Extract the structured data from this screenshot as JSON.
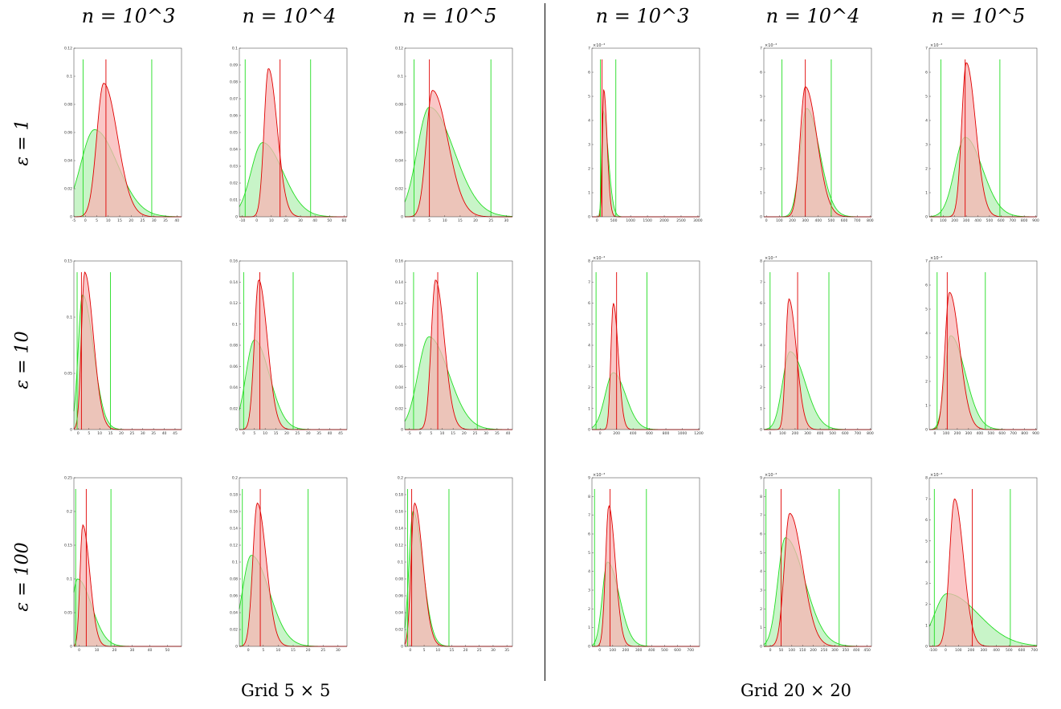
{
  "headers": {
    "columns": [
      "n = 10^3",
      "n = 10^4",
      "n = 10^5",
      "n = 10^3",
      "n = 10^4",
      "n = 10^5"
    ],
    "rows": [
      "ε = 1",
      "ε = 10",
      "ε = 100"
    ],
    "groups": [
      "Grid 5 × 5",
      "Grid 20 × 20"
    ]
  },
  "colors": {
    "red_series": "#e00000",
    "red_fill": "#f8b4b4",
    "green_series": "#22dd22",
    "green_fill": "#b6f0b6"
  },
  "chart_data": [
    {
      "type": "area",
      "x_ticks": [
        -5,
        0,
        5,
        10,
        15,
        20,
        25,
        30,
        35,
        40
      ],
      "xlim": [
        -5,
        42
      ],
      "y_ticks": [
        0,
        0.02,
        0.04,
        0.06,
        0.08,
        0.1,
        0.12
      ],
      "ylim": [
        0,
        0.12
      ],
      "exponent": "",
      "red_peak": {
        "x": 8,
        "y": 0.095
      },
      "red_sd": [
        3,
        6
      ],
      "green_peak": {
        "x": 4,
        "y": 0.062
      },
      "green_sd": [
        6,
        10
      ],
      "red_lines": [
        9
      ],
      "green_lines": [
        -1,
        29
      ]
    },
    {
      "type": "area",
      "x_ticks": [
        -10,
        0,
        10,
        20,
        30,
        40,
        50,
        60
      ],
      "xlim": [
        -12,
        62
      ],
      "y_ticks": [
        0,
        0.01,
        0.02,
        0.03,
        0.04,
        0.05,
        0.06,
        0.07,
        0.08,
        0.09,
        0.1
      ],
      "ylim": [
        0,
        0.1
      ],
      "exponent": "",
      "red_peak": {
        "x": 8,
        "y": 0.088
      },
      "red_sd": [
        3,
        6
      ],
      "green_peak": {
        "x": 4,
        "y": 0.044
      },
      "green_sd": [
        8,
        14
      ],
      "red_lines": [
        16
      ],
      "green_lines": [
        -8,
        37
      ]
    },
    {
      "type": "area",
      "x_ticks": [
        0,
        5,
        10,
        15,
        20,
        25,
        30
      ],
      "xlim": [
        -3,
        32
      ],
      "y_ticks": [
        0,
        0.02,
        0.04,
        0.06,
        0.08,
        0.1,
        0.12
      ],
      "ylim": [
        0,
        0.12
      ],
      "exponent": "",
      "red_peak": {
        "x": 6,
        "y": 0.09
      },
      "red_sd": [
        2,
        5
      ],
      "green_peak": {
        "x": 5,
        "y": 0.078
      },
      "green_sd": [
        4,
        8
      ],
      "red_lines": [
        5
      ],
      "green_lines": [
        0,
        25
      ]
    },
    {
      "type": "area",
      "x_ticks": [
        0,
        500,
        1000,
        1500,
        2000,
        2500,
        3000
      ],
      "xlim": [
        -150,
        3050
      ],
      "y_ticks": [
        0,
        1,
        2,
        3,
        4,
        5,
        6,
        7
      ],
      "ylim": [
        0,
        7
      ],
      "exponent": "×10⁻³",
      "red_peak": {
        "x": 200,
        "y": 5.3
      },
      "red_sd": [
        40,
        100
      ],
      "green_peak": {
        "x": 180,
        "y": 4.4
      },
      "green_sd": [
        40,
        150
      ],
      "red_lines": [
        150
      ],
      "green_lines": [
        100,
        560
      ]
    },
    {
      "type": "area",
      "x_ticks": [
        0,
        100,
        200,
        300,
        400,
        500,
        600,
        700,
        800
      ],
      "xlim": [
        -20,
        810
      ],
      "y_ticks": [
        0,
        1,
        2,
        3,
        4,
        5,
        6,
        7
      ],
      "ylim": [
        0,
        7
      ],
      "exponent": "×10⁻³",
      "red_peak": {
        "x": 300,
        "y": 5.4
      },
      "red_sd": [
        40,
        90
      ],
      "green_peak": {
        "x": 310,
        "y": 4.5
      },
      "green_sd": [
        50,
        100
      ],
      "red_lines": [
        300
      ],
      "green_lines": [
        120,
        500
      ]
    },
    {
      "type": "area",
      "x_ticks": [
        0,
        100,
        200,
        300,
        400,
        500,
        600,
        700,
        800,
        900
      ],
      "xlim": [
        -20,
        910
      ],
      "y_ticks": [
        0,
        1,
        2,
        3,
        4,
        5,
        6,
        7
      ],
      "ylim": [
        0,
        7
      ],
      "exponent": "×10⁻³",
      "red_peak": {
        "x": 300,
        "y": 6.4
      },
      "red_sd": [
        40,
        80
      ],
      "green_peak": {
        "x": 290,
        "y": 3.3
      },
      "green_sd": [
        90,
        150
      ],
      "red_lines": [
        290
      ],
      "green_lines": [
        80,
        590
      ]
    },
    {
      "type": "area",
      "x_ticks": [
        0,
        5,
        10,
        15,
        20,
        25,
        30,
        35,
        40,
        45
      ],
      "xlim": [
        -2,
        48
      ],
      "y_ticks": [
        0,
        0.05,
        0.1,
        0.15
      ],
      "ylim": [
        0,
        0.15
      ],
      "exponent": "",
      "red_peak": {
        "x": 3,
        "y": 0.14
      },
      "red_sd": [
        1.5,
        4
      ],
      "green_peak": {
        "x": 2,
        "y": 0.12
      },
      "green_sd": [
        2,
        5
      ],
      "red_lines": [
        1.5
      ],
      "green_lines": [
        -0.5,
        15
      ]
    },
    {
      "type": "area",
      "x_ticks": [
        0,
        5,
        10,
        15,
        20,
        25,
        30,
        35,
        40,
        45
      ],
      "xlim": [
        -2,
        48
      ],
      "y_ticks": [
        0,
        0.02,
        0.04,
        0.06,
        0.08,
        0.1,
        0.12,
        0.14,
        0.16
      ],
      "ylim": [
        0,
        0.16
      ],
      "exponent": "",
      "red_peak": {
        "x": 7,
        "y": 0.142
      },
      "red_sd": [
        2,
        4
      ],
      "green_peak": {
        "x": 5,
        "y": 0.085
      },
      "green_sd": [
        4,
        7
      ],
      "red_lines": [
        7.5
      ],
      "green_lines": [
        0,
        23
      ]
    },
    {
      "type": "area",
      "x_ticks": [
        -5,
        0,
        5,
        10,
        15,
        20,
        25,
        30,
        35,
        40
      ],
      "xlim": [
        -7,
        42
      ],
      "y_ticks": [
        0,
        0.02,
        0.04,
        0.06,
        0.08,
        0.1,
        0.12,
        0.14,
        0.16
      ],
      "ylim": [
        0,
        0.16
      ],
      "exponent": "",
      "red_peak": {
        "x": 7,
        "y": 0.142
      },
      "red_sd": [
        2,
        4
      ],
      "green_peak": {
        "x": 4,
        "y": 0.088
      },
      "green_sd": [
        5,
        9
      ],
      "red_lines": [
        8
      ],
      "green_lines": [
        -3,
        26
      ]
    },
    {
      "type": "area",
      "x_ticks": [
        0,
        200,
        400,
        600,
        800,
        1000,
        1200
      ],
      "xlim": [
        -100,
        1210
      ],
      "y_ticks": [
        0,
        1,
        2,
        3,
        4,
        5,
        6,
        7,
        8
      ],
      "ylim": [
        0,
        8
      ],
      "exponent": "×10⁻³",
      "red_peak": {
        "x": 160,
        "y": 6.0
      },
      "red_sd": [
        30,
        60
      ],
      "green_peak": {
        "x": 160,
        "y": 2.7
      },
      "green_sd": [
        100,
        150
      ],
      "red_lines": [
        200
      ],
      "green_lines": [
        -50,
        570
      ]
    },
    {
      "type": "area",
      "x_ticks": [
        0,
        100,
        200,
        300,
        400,
        500,
        600,
        700,
        800
      ],
      "xlim": [
        -50,
        810
      ],
      "y_ticks": [
        0,
        1,
        2,
        3,
        4,
        5,
        6,
        7,
        8
      ],
      "ylim": [
        0,
        8
      ],
      "exponent": "×10⁻³",
      "red_peak": {
        "x": 150,
        "y": 6.2
      },
      "red_sd": [
        25,
        60
      ],
      "green_peak": {
        "x": 160,
        "y": 3.7
      },
      "green_sd": [
        60,
        120
      ],
      "red_lines": [
        220
      ],
      "green_lines": [
        0,
        470
      ]
    },
    {
      "type": "area",
      "x_ticks": [
        0,
        100,
        200,
        300,
        400,
        500,
        600,
        700,
        800,
        900
      ],
      "xlim": [
        -50,
        910
      ],
      "y_ticks": [
        0,
        1,
        2,
        3,
        4,
        5,
        6,
        7
      ],
      "ylim": [
        0,
        7
      ],
      "exponent": "×10⁻³",
      "red_peak": {
        "x": 130,
        "y": 5.7
      },
      "red_sd": [
        40,
        90
      ],
      "green_peak": {
        "x": 140,
        "y": 3.9
      },
      "green_sd": [
        50,
        130
      ],
      "red_lines": [
        110
      ],
      "green_lines": [
        20,
        450
      ]
    },
    {
      "type": "area",
      "x_ticks": [
        0,
        10,
        20,
        30,
        40,
        50
      ],
      "xlim": [
        -3,
        58
      ],
      "y_ticks": [
        0,
        0.05,
        0.1,
        0.15,
        0.2,
        0.25
      ],
      "ylim": [
        0,
        0.25
      ],
      "exponent": "",
      "red_peak": {
        "x": 2,
        "y": 0.18
      },
      "red_sd": [
        1.5,
        4
      ],
      "green_peak": {
        "x": -1,
        "y": 0.1
      },
      "green_sd": [
        3,
        8
      ],
      "red_lines": [
        4
      ],
      "green_lines": [
        -2,
        18
      ]
    },
    {
      "type": "area",
      "x_ticks": [
        0,
        5,
        10,
        15,
        20,
        25,
        30
      ],
      "xlim": [
        -3,
        33
      ],
      "y_ticks": [
        0,
        0.02,
        0.04,
        0.06,
        0.08,
        0.1,
        0.12,
        0.14,
        0.16,
        0.18,
        0.2
      ],
      "ylim": [
        0,
        0.2
      ],
      "exponent": "",
      "red_peak": {
        "x": 3,
        "y": 0.17
      },
      "red_sd": [
        1.5,
        3
      ],
      "green_peak": {
        "x": 1,
        "y": 0.108
      },
      "green_sd": [
        3,
        6
      ],
      "red_lines": [
        4
      ],
      "green_lines": [
        -2,
        20
      ]
    },
    {
      "type": "area",
      "x_ticks": [
        0,
        5,
        10,
        15,
        20,
        25,
        30,
        35
      ],
      "xlim": [
        -2,
        37
      ],
      "y_ticks": [
        0,
        0.02,
        0.04,
        0.06,
        0.08,
        0.1,
        0.12,
        0.14,
        0.16,
        0.18,
        0.2
      ],
      "ylim": [
        0,
        0.2
      ],
      "exponent": "",
      "red_peak": {
        "x": 1.5,
        "y": 0.17
      },
      "red_sd": [
        1.2,
        3
      ],
      "green_peak": {
        "x": 1,
        "y": 0.16
      },
      "green_sd": [
        1.5,
        3.5
      ],
      "red_lines": [
        0.5
      ],
      "green_lines": [
        -1,
        14
      ]
    },
    {
      "type": "area",
      "x_ticks": [
        0,
        100,
        200,
        300,
        400,
        500,
        600,
        700
      ],
      "xlim": [
        -60,
        770
      ],
      "y_ticks": [
        0,
        1,
        2,
        3,
        4,
        5,
        6,
        7,
        8,
        9
      ],
      "ylim": [
        0,
        9
      ],
      "exponent": "×10⁻³",
      "red_peak": {
        "x": 70,
        "y": 7.5
      },
      "red_sd": [
        25,
        50
      ],
      "green_peak": {
        "x": 60,
        "y": 4.5
      },
      "green_sd": [
        40,
        90
      ],
      "red_lines": [
        80
      ],
      "green_lines": [
        -40,
        360
      ]
    },
    {
      "type": "area",
      "x_ticks": [
        0,
        50,
        100,
        150,
        200,
        250,
        300,
        350,
        400,
        450
      ],
      "xlim": [
        -30,
        470
      ],
      "y_ticks": [
        0,
        1,
        2,
        3,
        4,
        5,
        6,
        7,
        8,
        9
      ],
      "ylim": [
        0,
        9
      ],
      "exponent": "×10⁻³",
      "red_peak": {
        "x": 90,
        "y": 7.1
      },
      "red_sd": [
        25,
        60
      ],
      "green_peak": {
        "x": 70,
        "y": 5.8
      },
      "green_sd": [
        35,
        90
      ],
      "red_lines": [
        50
      ],
      "green_lines": [
        -20,
        320
      ]
    },
    {
      "type": "area",
      "x_ticks": [
        -100,
        0,
        100,
        200,
        300,
        400,
        500,
        600,
        700
      ],
      "xlim": [
        -130,
        720
      ],
      "y_ticks": [
        0,
        1,
        2,
        3,
        4,
        5,
        6,
        7,
        8
      ],
      "ylim": [
        0,
        8
      ],
      "exponent": "×10⁻³",
      "red_peak": {
        "x": 70,
        "y": 7.0
      },
      "red_sd": [
        40,
        70
      ],
      "green_peak": {
        "x": 10,
        "y": 2.5
      },
      "green_sd": [
        100,
        250
      ],
      "red_lines": [
        210
      ],
      "green_lines": [
        -90,
        510
      ]
    }
  ]
}
